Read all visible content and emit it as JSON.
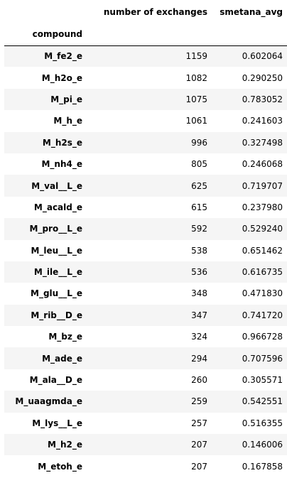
{
  "table": {
    "columns": [
      "number of exchanges",
      "smetana_avg"
    ],
    "index_name": "compound",
    "rows": [
      {
        "compound": "M_fe2_e",
        "exchanges": "1159",
        "smetana_avg": "0.602064"
      },
      {
        "compound": "M_h2o_e",
        "exchanges": "1082",
        "smetana_avg": "0.290250"
      },
      {
        "compound": "M_pi_e",
        "exchanges": "1075",
        "smetana_avg": "0.783052"
      },
      {
        "compound": "M_h_e",
        "exchanges": "1061",
        "smetana_avg": "0.241603"
      },
      {
        "compound": "M_h2s_e",
        "exchanges": "996",
        "smetana_avg": "0.327498"
      },
      {
        "compound": "M_nh4_e",
        "exchanges": "805",
        "smetana_avg": "0.246068"
      },
      {
        "compound": "M_val__L_e",
        "exchanges": "625",
        "smetana_avg": "0.719707"
      },
      {
        "compound": "M_acald_e",
        "exchanges": "615",
        "smetana_avg": "0.237980"
      },
      {
        "compound": "M_pro__L_e",
        "exchanges": "592",
        "smetana_avg": "0.529240"
      },
      {
        "compound": "M_leu__L_e",
        "exchanges": "538",
        "smetana_avg": "0.651462"
      },
      {
        "compound": "M_ile__L_e",
        "exchanges": "536",
        "smetana_avg": "0.616735"
      },
      {
        "compound": "M_glu__L_e",
        "exchanges": "348",
        "smetana_avg": "0.471830"
      },
      {
        "compound": "M_rib__D_e",
        "exchanges": "347",
        "smetana_avg": "0.741720"
      },
      {
        "compound": "M_bz_e",
        "exchanges": "324",
        "smetana_avg": "0.966728"
      },
      {
        "compound": "M_ade_e",
        "exchanges": "294",
        "smetana_avg": "0.707596"
      },
      {
        "compound": "M_ala__D_e",
        "exchanges": "260",
        "smetana_avg": "0.305571"
      },
      {
        "compound": "M_uaagmda_e",
        "exchanges": "259",
        "smetana_avg": "0.542551"
      },
      {
        "compound": "M_lys__L_e",
        "exchanges": "257",
        "smetana_avg": "0.516355"
      },
      {
        "compound": "M_h2_e",
        "exchanges": "207",
        "smetana_avg": "0.146006"
      },
      {
        "compound": "M_etoh_e",
        "exchanges": "207",
        "smetana_avg": "0.167858"
      }
    ]
  }
}
